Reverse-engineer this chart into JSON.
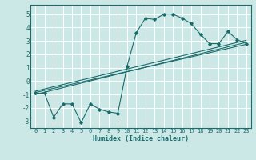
{
  "xlabel": "Humidex (Indice chaleur)",
  "bg_color": "#cce8e6",
  "grid_color": "#ffffff",
  "line_color": "#1a6b6b",
  "xlim": [
    -0.5,
    23.5
  ],
  "ylim": [
    -3.5,
    5.7
  ],
  "xticks": [
    0,
    1,
    2,
    3,
    4,
    5,
    6,
    7,
    8,
    9,
    10,
    11,
    12,
    13,
    14,
    15,
    16,
    17,
    18,
    19,
    20,
    21,
    22,
    23
  ],
  "yticks": [
    -3,
    -2,
    -1,
    0,
    1,
    2,
    3,
    4,
    5
  ],
  "curve1_x": [
    0,
    1,
    2,
    3,
    4,
    5,
    6,
    7,
    8,
    9,
    10,
    11,
    12,
    13,
    14,
    15,
    16,
    17,
    18,
    19,
    20,
    21,
    22,
    23
  ],
  "curve1_y": [
    -0.9,
    -0.9,
    -2.7,
    -1.7,
    -1.7,
    -3.1,
    -1.7,
    -2.1,
    -2.3,
    -2.4,
    1.1,
    3.6,
    4.7,
    4.6,
    5.0,
    5.0,
    4.7,
    4.3,
    3.5,
    2.8,
    2.8,
    3.7,
    3.1,
    2.8
  ],
  "reg_lines": [
    {
      "x0": 0,
      "y0": -1.0,
      "x1": 23,
      "y1": 2.9
    },
    {
      "x0": 0,
      "y0": -0.85,
      "x1": 23,
      "y1": 2.75
    },
    {
      "x0": 0,
      "y0": -0.75,
      "x1": 23,
      "y1": 3.05
    }
  ]
}
